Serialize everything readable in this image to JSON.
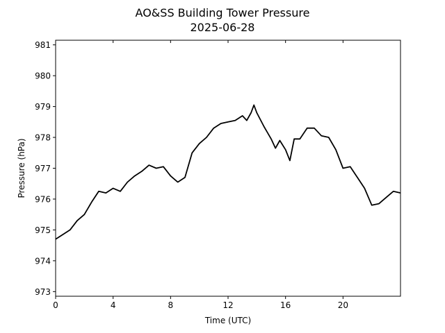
{
  "chart_data": {
    "type": "line",
    "title": "AO&SS Building Tower Pressure",
    "subtitle": "2025-06-28",
    "xlabel": "Time (UTC)",
    "ylabel": "Pressure (hPa)",
    "xlim": [
      0,
      24
    ],
    "ylim": [
      972.85,
      981.15
    ],
    "xticks": [
      0,
      4,
      8,
      12,
      16,
      20
    ],
    "yticks": [
      973,
      974,
      975,
      976,
      977,
      978,
      979,
      980,
      981
    ],
    "grid": false,
    "line_color": "#000000",
    "series": [
      {
        "x": [
          0,
          0.5,
          1,
          1.5,
          2,
          2.5,
          3,
          3.5,
          4,
          4.5,
          5,
          5.5,
          6,
          6.5,
          7,
          7.5,
          8,
          8.5,
          9,
          9.5,
          10,
          10.5,
          11,
          11.5,
          12,
          12.5,
          13,
          13.3,
          13.6,
          13.8,
          14,
          14.5,
          15,
          15.3,
          15.6,
          16,
          16.3,
          16.6,
          17,
          17.5,
          18,
          18.5,
          19,
          19.5,
          20,
          20.5,
          21,
          21.5,
          22,
          22.5,
          23,
          23.5,
          24
        ],
        "y": [
          974.7,
          974.85,
          975.0,
          975.3,
          975.5,
          975.9,
          976.25,
          976.2,
          976.35,
          976.25,
          976.55,
          976.75,
          976.9,
          977.1,
          977.0,
          977.05,
          976.75,
          976.55,
          976.7,
          977.5,
          977.8,
          978.0,
          978.3,
          978.45,
          978.5,
          978.55,
          978.7,
          978.55,
          978.8,
          979.05,
          978.8,
          978.35,
          977.95,
          977.65,
          977.9,
          977.6,
          977.25,
          977.95,
          977.95,
          978.3,
          978.3,
          978.05,
          978.0,
          977.6,
          977.0,
          977.05,
          976.7,
          976.35,
          975.8,
          975.85,
          976.05,
          976.25,
          976.2
        ]
      }
    ]
  }
}
